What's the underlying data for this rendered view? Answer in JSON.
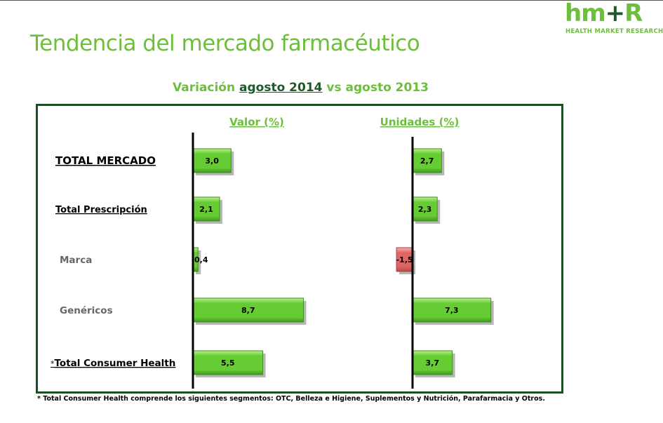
{
  "logo": {
    "mark_left": "hm",
    "mark_plus": "+",
    "mark_right": "R",
    "subtitle": "HEALTH MARKET RESEARCH"
  },
  "page_title": "Tendencia del mercado farmacéutico",
  "subtitle": {
    "prefix": "Variación ",
    "highlight": "agosto 2014",
    "suffix": "  vs agosto 2013"
  },
  "footnote": "* Total Consumer Health comprende los siguientes segmentos: OTC, Belleza e Higiene, Suplementos y Nutrición, Parafarmacia y Otros.",
  "colors": {
    "brand_green": "#6cbf3a",
    "dark_green": "#1d4f24",
    "bar_positive": "#66cc33",
    "bar_negative": "#e06666"
  },
  "chart_data": {
    "type": "bar",
    "orientation": "horizontal",
    "categories": [
      "TOTAL MERCADO",
      "Total Prescripción",
      "Marca",
      "Genéricos",
      "Total Consumer Health"
    ],
    "category_prefix": {
      "Total Consumer Health": "*"
    },
    "series": [
      {
        "name": "Valor (%)",
        "values": [
          3.0,
          2.1,
          0.4,
          8.7,
          5.5
        ],
        "labels": [
          "3,0",
          "2,1",
          "0,4",
          "8,7",
          "5,5"
        ]
      },
      {
        "name": "Unidades (%)",
        "values": [
          2.7,
          2.3,
          -1.5,
          7.3,
          3.7
        ],
        "labels": [
          "2,7",
          "2,3",
          "-1,5",
          "7,3",
          "3,7"
        ]
      }
    ],
    "grid": false,
    "legend": "none"
  }
}
